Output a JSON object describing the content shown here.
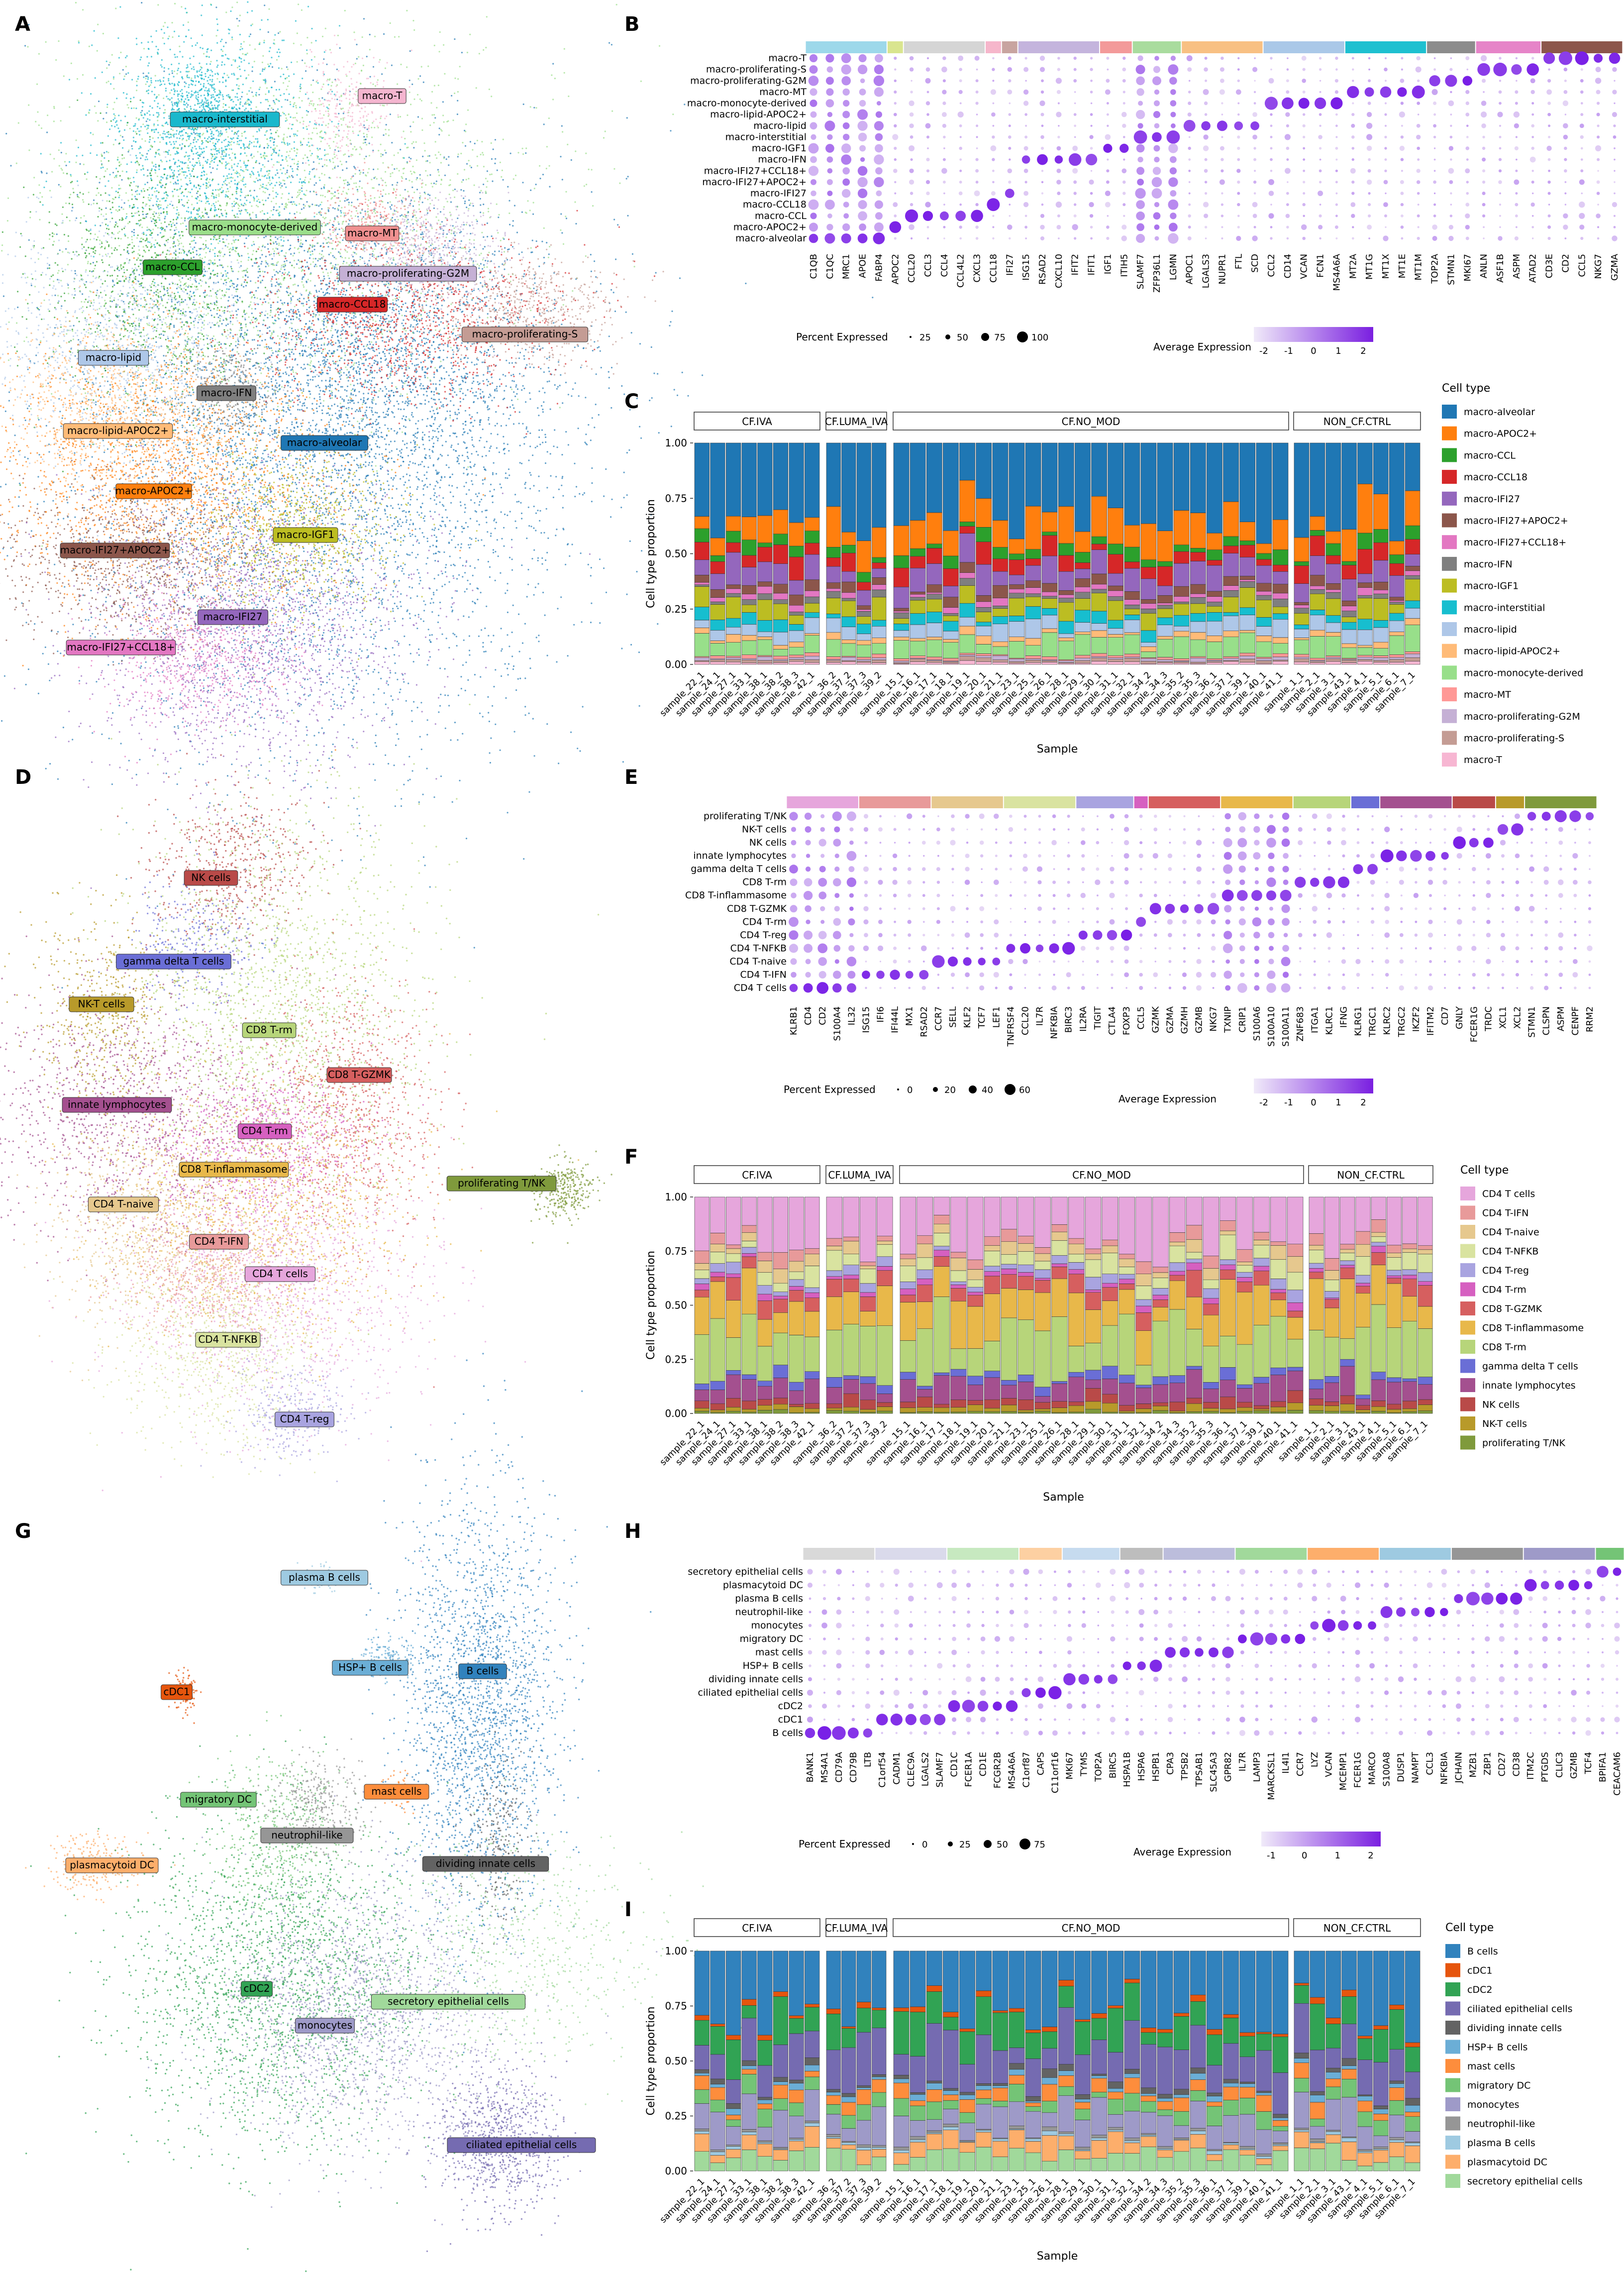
{
  "panel_letters": [
    "A",
    "B",
    "C",
    "D",
    "E",
    "F",
    "G",
    "H",
    "I"
  ],
  "groups": [
    "CF.IVA",
    "CF.LUMA_IVA",
    "CF.NO_MOD",
    "NON_CF.CTRL"
  ],
  "samples": {
    "CF.IVA": [
      "sample_22_1",
      "sample_24_1",
      "sample_27_1",
      "sample_33_1",
      "sample_38_1",
      "sample_38_2",
      "sample_38_3",
      "sample_42_1"
    ],
    "CF.LUMA_IVA": [
      "sample_36_2",
      "sample_37_2",
      "sample_37_3",
      "sample_39_2"
    ],
    "CF.NO_MOD": [
      "sample_15_1",
      "sample_16_1",
      "sample_17_1",
      "sample_18_1",
      "sample_19_1",
      "sample_20_1",
      "sample_21_1",
      "sample_23_1",
      "sample_25_1",
      "sample_26_1",
      "sample_28_1",
      "sample_29_1",
      "sample_30_1",
      "sample_31_1",
      "sample_32_1",
      "sample_34_2",
      "sample_34_3",
      "sample_35_2",
      "sample_35_3",
      "sample_36_1",
      "sample_37_1",
      "sample_39_1",
      "sample_40_1",
      "sample_41_1"
    ],
    "NON_CF.CTRL": [
      "sample_1_1",
      "sample_2_1",
      "sample_3_1",
      "sample_43_1",
      "sample_4_1",
      "sample_5_1",
      "sample_6_1",
      "sample_7_1"
    ]
  },
  "texts": {
    "percent_expressed": "Percent Expressed",
    "average_expression": "Average Expression",
    "cell_type": "Cell type",
    "sample": "Sample",
    "ylab": "Cell type proportion"
  },
  "y_ticks": [
    "0.00",
    "0.25",
    "0.50",
    "0.75",
    "1.00"
  ],
  "panels": {
    "A": {
      "umap_labels": [
        {
          "name": "macro-T",
          "color": "#f4b5cf"
        },
        {
          "name": "macro-interstitial",
          "color": "#1ab8cc"
        },
        {
          "name": "macro-monocyte-derived",
          "color": "#9bde8a"
        },
        {
          "name": "macro-MT",
          "color": "#f09090"
        },
        {
          "name": "macro-CCL",
          "color": "#2ca02c"
        },
        {
          "name": "macro-proliferating-G2M",
          "color": "#c5b0d5"
        },
        {
          "name": "macro-CCL18",
          "color": "#d62728"
        },
        {
          "name": "macro-proliferating-S",
          "color": "#c49c94"
        },
        {
          "name": "macro-lipid",
          "color": "#aec7e8"
        },
        {
          "name": "macro-IFN",
          "color": "#7f7f7f"
        },
        {
          "name": "macro-lipid-APOC2+",
          "color": "#ffbb78"
        },
        {
          "name": "macro-alveolar",
          "color": "#1f77b4"
        },
        {
          "name": "macro-APOC2+",
          "color": "#ff7f0e"
        },
        {
          "name": "macro-IGF1",
          "color": "#bcbd22"
        },
        {
          "name": "macro-IFI27+APOC2+",
          "color": "#8c564b"
        },
        {
          "name": "macro-IFI27",
          "color": "#9467bd"
        },
        {
          "name": "macro-IFI27+CCL18+",
          "color": "#e377c2"
        }
      ]
    },
    "B": {
      "rows": [
        "macro-T",
        "macro-proliferating-S",
        "macro-proliferating-G2M",
        "macro-MT",
        "macro-monocyte-derived",
        "macro-lipid-APOC2+",
        "macro-lipid",
        "macro-interstitial",
        "macro-IGF1",
        "macro-IFN",
        "macro-IFI27+CCL18+",
        "macro-IFI27+APOC2+",
        "macro-IFI27",
        "macro-CCL18",
        "macro-CCL",
        "macro-APOC2+",
        "macro-alveolar"
      ],
      "genes": [
        "C1QB",
        "C1QC",
        "MRC1",
        "APOE",
        "FABP4",
        "APOC2",
        "CCL20",
        "CCL3",
        "CCL4",
        "CCL4L2",
        "CXCL3",
        "CCL18",
        "IFI27",
        "ISG15",
        "RSAD2",
        "CXCL10",
        "IFIT2",
        "IFIT1",
        "IGF1",
        "ITIH5",
        "SLAMF7",
        "ZFP36L1",
        "LGMN",
        "APOC1",
        "LGALS3",
        "NUPR1",
        "FTL",
        "SCD",
        "CCL2",
        "CD14",
        "VCAN",
        "FCN1",
        "MS4A6A",
        "MT2A",
        "MT1G",
        "MT1X",
        "MT1E",
        "MT1M",
        "TOP2A",
        "STMN1",
        "MKI67",
        "ANLN",
        "ASF1B",
        "ASPM",
        "ATAD2",
        "CD3E",
        "CD2",
        "CCL5",
        "NKG7",
        "GZMA"
      ],
      "groups": [
        {
          "n": 5,
          "color": "#9dd8ea"
        },
        {
          "n": 1,
          "color": "#d9e58f"
        },
        {
          "n": 5,
          "color": "#d5d5d5"
        },
        {
          "n": 1,
          "color": "#f6b6cb"
        },
        {
          "n": 1,
          "color": "#c8a4a0"
        },
        {
          "n": 5,
          "color": "#c4b4dd"
        },
        {
          "n": 2,
          "color": "#f39a9a"
        },
        {
          "n": 3,
          "color": "#a9dc9e"
        },
        {
          "n": 5,
          "color": "#f8c083"
        },
        {
          "n": 5,
          "color": "#aac8e8"
        },
        {
          "n": 5,
          "color": "#1ec0d0"
        },
        {
          "n": 3,
          "color": "#8c8c8c"
        },
        {
          "n": 4,
          "color": "#e684c8"
        },
        {
          "n": 5,
          "color": "#8c564b"
        }
      ],
      "size_legend": [
        "25",
        "50",
        "75",
        "100"
      ],
      "color_legend": [
        "-2",
        "-1",
        "0",
        "1",
        "2"
      ]
    },
    "C": {
      "legend": [
        {
          "name": "macro-alveolar",
          "color": "#1f77b4"
        },
        {
          "name": "macro-APOC2+",
          "color": "#ff7f0e"
        },
        {
          "name": "macro-CCL",
          "color": "#2ca02c"
        },
        {
          "name": "macro-CCL18",
          "color": "#d62728"
        },
        {
          "name": "macro-IFI27",
          "color": "#9467bd"
        },
        {
          "name": "macro-IFI27+APOC2+",
          "color": "#8c564b"
        },
        {
          "name": "macro-IFI27+CCL18+",
          "color": "#e377c2"
        },
        {
          "name": "macro-IFN",
          "color": "#7f7f7f"
        },
        {
          "name": "macro-IGF1",
          "color": "#bcbd22"
        },
        {
          "name": "macro-interstitial",
          "color": "#17becf"
        },
        {
          "name": "macro-lipid",
          "color": "#aec7e8"
        },
        {
          "name": "macro-lipid-APOC2+",
          "color": "#ffbb78"
        },
        {
          "name": "macro-monocyte-derived",
          "color": "#98df8a"
        },
        {
          "name": "macro-MT",
          "color": "#ff9896"
        },
        {
          "name": "macro-proliferating-G2M",
          "color": "#c5b0d5"
        },
        {
          "name": "macro-proliferating-S",
          "color": "#c49c94"
        },
        {
          "name": "macro-T",
          "color": "#f7b6d2"
        }
      ]
    },
    "D": {
      "umap_labels": [
        {
          "name": "NK cells",
          "color": "#b94a48"
        },
        {
          "name": "gamma delta T cells",
          "color": "#6a6ed6"
        },
        {
          "name": "NK-T cells",
          "color": "#b89a2a"
        },
        {
          "name": "CD8 T-rm",
          "color": "#b7d57a"
        },
        {
          "name": "CD8 T-GZMK",
          "color": "#d65f5f"
        },
        {
          "name": "innate lymphocytes",
          "color": "#a4508f"
        },
        {
          "name": "CD4 T-rm",
          "color": "#d660c0"
        },
        {
          "name": "CD8 T-inflammasome",
          "color": "#e8b84a"
        },
        {
          "name": "proliferating T/NK",
          "color": "#7f9a3c"
        },
        {
          "name": "CD4 T-naive",
          "color": "#e6c88e"
        },
        {
          "name": "CD4 T-IFN",
          "color": "#e89a9a"
        },
        {
          "name": "CD4 T cells",
          "color": "#e6a6dc"
        },
        {
          "name": "CD4 T-NFKB",
          "color": "#d9e3a0"
        },
        {
          "name": "CD4 T-reg",
          "color": "#a9a4e0"
        }
      ]
    },
    "E": {
      "rows": [
        "proliferating T/NK",
        "NK-T cells",
        "NK cells",
        "innate lymphocytes",
        "gamma delta T cells",
        "CD8 T-rm",
        "CD8 T-inflammasome",
        "CD8 T-GZMK",
        "CD4 T-rm",
        "CD4 T-reg",
        "CD4 T-NFKB",
        "CD4 T-naive",
        "CD4 T-IFN",
        "CD4 T cells"
      ],
      "genes": [
        "KLRB1",
        "CD4",
        "CD2",
        "S100A4",
        "IL32",
        "ISG15",
        "IFI6",
        "IFI44L",
        "MX1",
        "RSAD2",
        "CCR7",
        "SELL",
        "KLF2",
        "TCF7",
        "LEF1",
        "TNFRSF4",
        "CCL20",
        "IL7R",
        "NFKBIA",
        "BIRC3",
        "IL2RA",
        "TIGIT",
        "CTLA4",
        "FOXP3",
        "CCL5",
        "GZMK",
        "GZMA",
        "GZMH",
        "GZMB",
        "NKG7",
        "TXNIP",
        "CRIP1",
        "S100A6",
        "S100A10",
        "S100A11",
        "ZNF683",
        "ITGA1",
        "KLRC1",
        "IFNG",
        "KLRG1",
        "TRGC1",
        "KLRC2",
        "TRGC2",
        "IKZF2",
        "IFITM2",
        "CD7",
        "GNLY",
        "FCER1G",
        "TRDC",
        "XCL1",
        "XCL2",
        "STMN1",
        "CLSPN",
        "ASPM",
        "CENPF",
        "RRM2"
      ],
      "groups": [
        {
          "n": 5,
          "color": "#e6a6dc"
        },
        {
          "n": 5,
          "color": "#e89a9a"
        },
        {
          "n": 5,
          "color": "#e6c88e"
        },
        {
          "n": 5,
          "color": "#d9e3a0"
        },
        {
          "n": 4,
          "color": "#a9a4e0"
        },
        {
          "n": 1,
          "color": "#d660c0"
        },
        {
          "n": 5,
          "color": "#d65f5f"
        },
        {
          "n": 5,
          "color": "#e8b84a"
        },
        {
          "n": 4,
          "color": "#b7d57a"
        },
        {
          "n": 2,
          "color": "#6a6ed6"
        },
        {
          "n": 5,
          "color": "#a4508f"
        },
        {
          "n": 3,
          "color": "#b94a48"
        },
        {
          "n": 2,
          "color": "#b89a2a"
        },
        {
          "n": 5,
          "color": "#7f9a3c"
        }
      ],
      "size_legend": [
        "0",
        "20",
        "40",
        "60"
      ],
      "color_legend": [
        "-2",
        "-1",
        "0",
        "1",
        "2"
      ]
    },
    "F": {
      "legend": [
        {
          "name": "CD4 T cells",
          "color": "#e6a6dc"
        },
        {
          "name": "CD4 T-IFN",
          "color": "#e89a9a"
        },
        {
          "name": "CD4 T-naive",
          "color": "#e6c88e"
        },
        {
          "name": "CD4 T-NFKB",
          "color": "#d9e3a0"
        },
        {
          "name": "CD4 T-reg",
          "color": "#a9a4e0"
        },
        {
          "name": "CD4 T-rm",
          "color": "#d660c0"
        },
        {
          "name": "CD8 T-GZMK",
          "color": "#d65f5f"
        },
        {
          "name": "CD8 T-inflammasome",
          "color": "#e8b84a"
        },
        {
          "name": "CD8 T-rm",
          "color": "#b7d57a"
        },
        {
          "name": "gamma delta T cells",
          "color": "#6a6ed6"
        },
        {
          "name": "innate lymphocytes",
          "color": "#a4508f"
        },
        {
          "name": "NK cells",
          "color": "#b94a48"
        },
        {
          "name": "NK-T cells",
          "color": "#b89a2a"
        },
        {
          "name": "proliferating T/NK",
          "color": "#7f9a3c"
        }
      ]
    },
    "G": {
      "umap_labels": [
        {
          "name": "plasma B cells",
          "color": "#9ecae1"
        },
        {
          "name": "HSP+ B cells",
          "color": "#6baed6"
        },
        {
          "name": "B cells",
          "color": "#3182bd"
        },
        {
          "name": "cDC1",
          "color": "#e6550d"
        },
        {
          "name": "mast cells",
          "color": "#fd8d3c"
        },
        {
          "name": "migratory DC",
          "color": "#74c476"
        },
        {
          "name": "neutrophil-like",
          "color": "#969696"
        },
        {
          "name": "dividing innate cells",
          "color": "#636363"
        },
        {
          "name": "plasmacytoid DC",
          "color": "#fdae6b"
        },
        {
          "name": "cDC2",
          "color": "#31a354"
        },
        {
          "name": "secretory epithelial cells",
          "color": "#a1d99b"
        },
        {
          "name": "monocytes",
          "color": "#9e9ac8"
        },
        {
          "name": "ciliated epithelial cells",
          "color": "#756bb1"
        }
      ]
    },
    "H": {
      "rows": [
        "secretory epithelial cells",
        "plasmacytoid DC",
        "plasma B cells",
        "neutrophil-like",
        "monocytes",
        "migratory DC",
        "mast cells",
        "HSP+ B cells",
        "dividing innate cells",
        "ciliated epithelial cells",
        "cDC2",
        "cDC1",
        "B cells"
      ],
      "genes": [
        "BANK1",
        "MS4A1",
        "CD79A",
        "CD79B",
        "LTB",
        "C1orf54",
        "CADM1",
        "CLEC9A",
        "LGALS2",
        "SLAMF7",
        "CD1C",
        "FCER1A",
        "CD1E",
        "FCGR2B",
        "MS4A6A",
        "C1orf87",
        "CAPS",
        "C11orf16",
        "MKI67",
        "TYMS",
        "TOP2A",
        "BIRC5",
        "HSPA1B",
        "HSPA6",
        "HSPB1",
        "CPA3",
        "TPSB2",
        "TPSAB1",
        "SLC45A3",
        "GPR82",
        "IL7R",
        "LAMP3",
        "MARCKSL1",
        "IL4I1",
        "CCR7",
        "LYZ",
        "VCAN",
        "MCEMP1",
        "FCER1G",
        "MARCO",
        "S100A8",
        "DUSP1",
        "NAMPT",
        "CCL3",
        "NFKBIA",
        "JCHAIN",
        "MZB1",
        "ZBP1",
        "CD27",
        "CD38",
        "ITM2C",
        "PTGDS",
        "CLIC3",
        "GZMB",
        "TCF4",
        "BPIFA1",
        "CEACAM6"
      ],
      "groups": [
        {
          "n": 5,
          "color": "#d9d9d9"
        },
        {
          "n": 5,
          "color": "#dadaeb"
        },
        {
          "n": 5,
          "color": "#c7e9c0"
        },
        {
          "n": 3,
          "color": "#fdd0a2"
        },
        {
          "n": 4,
          "color": "#c6dbef"
        },
        {
          "n": 3,
          "color": "#bdbdbd"
        },
        {
          "n": 5,
          "color": "#bcbddc"
        },
        {
          "n": 5,
          "color": "#a1d99b"
        },
        {
          "n": 5,
          "color": "#fdae6b"
        },
        {
          "n": 5,
          "color": "#9ecae1"
        },
        {
          "n": 5,
          "color": "#969696"
        },
        {
          "n": 5,
          "color": "#9e9ac8"
        },
        {
          "n": 2,
          "color": "#74c476"
        }
      ],
      "size_legend": [
        "0",
        "25",
        "50",
        "75"
      ],
      "color_legend": [
        "-1",
        "0",
        "1",
        "2"
      ]
    },
    "I": {
      "legend": [
        {
          "name": "B cells",
          "color": "#3182bd"
        },
        {
          "name": "cDC1",
          "color": "#e6550d"
        },
        {
          "name": "cDC2",
          "color": "#31a354"
        },
        {
          "name": "ciliated epithelial cells",
          "color": "#756bb1"
        },
        {
          "name": "dividing innate cells",
          "color": "#636363"
        },
        {
          "name": "HSP+ B cells",
          "color": "#6baed6"
        },
        {
          "name": "mast cells",
          "color": "#fd8d3c"
        },
        {
          "name": "migratory DC",
          "color": "#74c476"
        },
        {
          "name": "monocytes",
          "color": "#9e9ac8"
        },
        {
          "name": "neutrophil-like",
          "color": "#969696"
        },
        {
          "name": "plasma B cells",
          "color": "#9ecae1"
        },
        {
          "name": "plasmacytoid DC",
          "color": "#fdae6b"
        },
        {
          "name": "secretory epithelial cells",
          "color": "#a1d99b"
        }
      ]
    }
  }
}
